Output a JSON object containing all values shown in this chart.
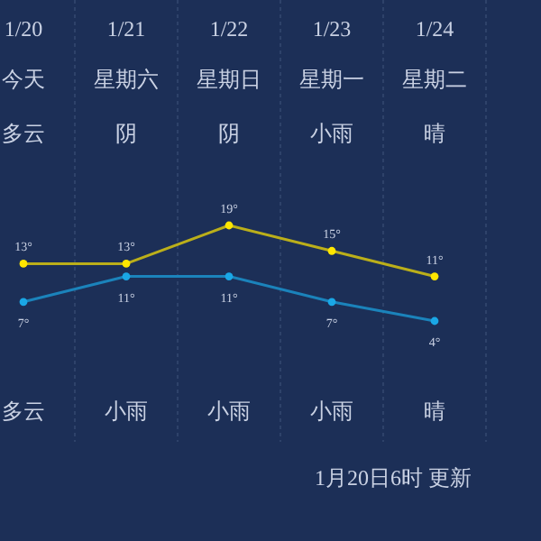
{
  "chart_data": {
    "type": "line",
    "categories": [
      "1/20",
      "1/21",
      "1/22",
      "1/23",
      "1/24"
    ],
    "series": [
      {
        "color": "#ffe600",
        "values": [
          13,
          13,
          19,
          15,
          11
        ],
        "value_labels": [
          "13°",
          "13°",
          "19°",
          "15°",
          "11°"
        ]
      },
      {
        "color": "#1aa7e6",
        "values": [
          7,
          11,
          11,
          7,
          4
        ],
        "value_labels": [
          "7°",
          "11°",
          "11°",
          "7°",
          "4°"
        ]
      }
    ],
    "annotations": [
      "今天",
      "星期六",
      "星期日",
      "星期一",
      "星期二",
      "多云",
      "阴",
      "阴",
      "小雨",
      "晴",
      "多云",
      "小雨",
      "小雨",
      "小雨",
      "晴",
      "1月20日6时 更新"
    ],
    "grid": "x",
    "marker": "circle"
  }
}
